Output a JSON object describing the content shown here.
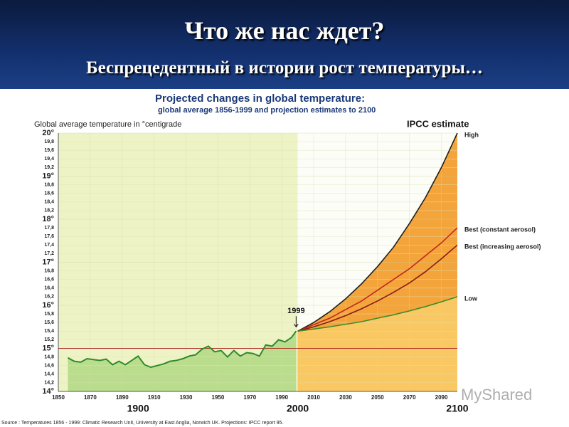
{
  "slide": {
    "title": "Что же нас ждет?",
    "subtitle": "Беспрецедентный в истории рост температуры…"
  },
  "chart_data": {
    "type": "line",
    "title": "Projected changes in global temperature:",
    "subtitle": "global average 1856-1999 and projection estimates to 2100",
    "y_label": "Global average temperature in °centigrade",
    "legend_title": "IPCC estimate",
    "annotation": "1999",
    "source": "Source : Temperatures 1856 - 1999: Climatic Research Unit, University at East Anglia, Norwich UK. Projections: IPCC report 95.",
    "watermark": "MyShared",
    "xlim": [
      1850,
      2100
    ],
    "ylim": [
      14,
      20
    ],
    "grid": true,
    "reference_line": 15,
    "xticks": [
      1850,
      1870,
      1890,
      1910,
      1930,
      1950,
      1970,
      1990,
      2010,
      2030,
      2050,
      2070,
      2090
    ],
    "century_ticks": [
      1900,
      2000,
      2100
    ],
    "yticks": [
      {
        "value": 14,
        "label": "14°"
      },
      {
        "value": 14.2,
        "label": "14,2"
      },
      {
        "value": 14.4,
        "label": "14,4"
      },
      {
        "value": 14.6,
        "label": "14,6"
      },
      {
        "value": 14.8,
        "label": "14,8"
      },
      {
        "value": 15,
        "label": "15°"
      },
      {
        "value": 15.2,
        "label": "15,2"
      },
      {
        "value": 15.4,
        "label": "15,4"
      },
      {
        "value": 15.6,
        "label": "15,6"
      },
      {
        "value": 15.8,
        "label": "15,8"
      },
      {
        "value": 16,
        "label": "16°"
      },
      {
        "value": 16.2,
        "label": "16,2"
      },
      {
        "value": 16.4,
        "label": "16,4"
      },
      {
        "value": 16.6,
        "label": "16,6"
      },
      {
        "value": 16.8,
        "label": "16,8"
      },
      {
        "value": 17,
        "label": "17°"
      },
      {
        "value": 17.2,
        "label": "17,2"
      },
      {
        "value": 17.4,
        "label": "17,4"
      },
      {
        "value": 17.6,
        "label": "17,6"
      },
      {
        "value": 17.8,
        "label": "17,8"
      },
      {
        "value": 18,
        "label": "18°"
      },
      {
        "value": 18.2,
        "label": "18,2"
      },
      {
        "value": 18.4,
        "label": "18,4"
      },
      {
        "value": 18.6,
        "label": "18,6"
      },
      {
        "value": 18.8,
        "label": "18,8"
      },
      {
        "value": 19,
        "label": "19°"
      },
      {
        "value": 19.2,
        "label": "19,2"
      },
      {
        "value": 19.4,
        "label": "19,4"
      },
      {
        "value": 19.6,
        "label": "19,6"
      },
      {
        "value": 19.8,
        "label": "19,8"
      },
      {
        "value": 20,
        "label": "20°"
      }
    ],
    "historical": {
      "color": "#2f8a2a",
      "fill": "#b9dd8c",
      "x": [
        1856,
        1860,
        1864,
        1868,
        1872,
        1876,
        1880,
        1884,
        1888,
        1892,
        1896,
        1900,
        1904,
        1908,
        1912,
        1916,
        1920,
        1924,
        1928,
        1932,
        1936,
        1940,
        1944,
        1948,
        1952,
        1956,
        1960,
        1964,
        1968,
        1972,
        1976,
        1980,
        1984,
        1988,
        1992,
        1996,
        1999
      ],
      "values": [
        14.78,
        14.7,
        14.68,
        14.76,
        14.74,
        14.72,
        14.75,
        14.62,
        14.7,
        14.62,
        14.72,
        14.82,
        14.62,
        14.56,
        14.6,
        14.64,
        14.7,
        14.72,
        14.76,
        14.82,
        14.85,
        14.98,
        15.05,
        14.92,
        14.95,
        14.8,
        14.95,
        14.82,
        14.9,
        14.88,
        14.82,
        15.08,
        15.05,
        15.2,
        15.15,
        15.25,
        15.4
      ]
    },
    "series": [
      {
        "name": "High",
        "color": "#1e1e1e",
        "fill": "#f3a53c",
        "x": [
          2000,
          2010,
          2020,
          2030,
          2040,
          2050,
          2060,
          2070,
          2080,
          2090,
          2100
        ],
        "values": [
          15.4,
          15.6,
          15.85,
          16.15,
          16.5,
          16.9,
          17.35,
          17.9,
          18.5,
          19.2,
          20.0
        ]
      },
      {
        "name": "Best (constant aerosol)",
        "color": "#c0281e",
        "x": [
          2000,
          2010,
          2020,
          2030,
          2040,
          2050,
          2060,
          2070,
          2080,
          2090,
          2100
        ],
        "values": [
          15.4,
          15.55,
          15.7,
          15.9,
          16.1,
          16.35,
          16.6,
          16.85,
          17.15,
          17.45,
          17.8
        ]
      },
      {
        "name": "Best (increasing aerosol)",
        "color": "#8a1a14",
        "x": [
          2000,
          2010,
          2020,
          2030,
          2040,
          2050,
          2060,
          2070,
          2080,
          2090,
          2100
        ],
        "values": [
          15.4,
          15.5,
          15.62,
          15.76,
          15.92,
          16.1,
          16.3,
          16.52,
          16.78,
          17.08,
          17.4
        ]
      },
      {
        "name": "Low",
        "color": "#3c8c28",
        "fill": "#f9c862",
        "x": [
          2000,
          2010,
          2020,
          2030,
          2040,
          2050,
          2060,
          2070,
          2080,
          2090,
          2100
        ],
        "values": [
          15.4,
          15.45,
          15.5,
          15.56,
          15.62,
          15.7,
          15.78,
          15.87,
          15.97,
          16.08,
          16.2
        ]
      }
    ]
  }
}
